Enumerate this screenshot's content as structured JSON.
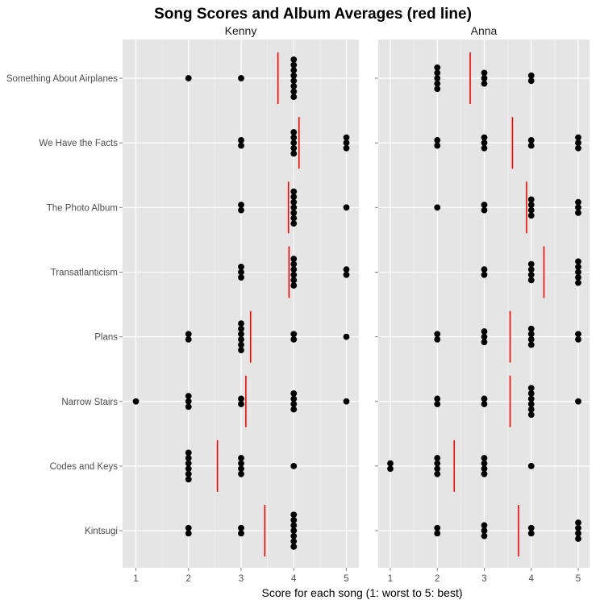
{
  "chart_data": {
    "type": "scatter",
    "title": "Song Scores and Album Averages (red line)",
    "xlabel": "Score for each song (1: worst to 5: best)",
    "ylabel": "",
    "xlim": [
      0.75,
      5.25
    ],
    "x_ticks": [
      1,
      2,
      3,
      4,
      5
    ],
    "grid": true,
    "legend": null,
    "facet_by": "reviewer",
    "categories": [
      "Something About Airplanes",
      "We Have the Facts",
      "The Photo Album",
      "Transatlanticism",
      "Plans",
      "Narrow Stairs",
      "Codes and Keys",
      "Kintsugi"
    ],
    "mean_line_color": "#ff0000",
    "point_color": "#000000",
    "panels": [
      {
        "name": "Kenny",
        "albums": [
          {
            "album": "Something About Airplanes",
            "score_counts": {
              "1": 0,
              "2": 1,
              "3": 1,
              "4": 8,
              "5": 0
            },
            "mean": 3.7
          },
          {
            "album": "We Have the Facts",
            "score_counts": {
              "1": 0,
              "2": 0,
              "3": 2,
              "4": 5,
              "5": 3
            },
            "mean": 4.1
          },
          {
            "album": "The Photo Album",
            "score_counts": {
              "1": 0,
              "2": 0,
              "3": 2,
              "4": 7,
              "5": 1
            },
            "mean": 3.9
          },
          {
            "album": "Transatlanticism",
            "score_counts": {
              "1": 0,
              "2": 0,
              "3": 3,
              "4": 6,
              "5": 2
            },
            "mean": 3.91
          },
          {
            "album": "Plans",
            "score_counts": {
              "1": 0,
              "2": 2,
              "3": 6,
              "4": 2,
              "5": 1
            },
            "mean": 3.18
          },
          {
            "album": "Narrow Stairs",
            "score_counts": {
              "1": 1,
              "2": 3,
              "3": 2,
              "4": 4,
              "5": 1
            },
            "mean": 3.09
          },
          {
            "album": "Codes and Keys",
            "score_counts": {
              "1": 0,
              "2": 6,
              "3": 4,
              "4": 1,
              "5": 0
            },
            "mean": 2.55
          },
          {
            "album": "Kintsugi",
            "score_counts": {
              "1": 0,
              "2": 2,
              "3": 2,
              "4": 7,
              "5": 0
            },
            "mean": 3.45
          }
        ]
      },
      {
        "name": "Anna",
        "albums": [
          {
            "album": "Something About Airplanes",
            "score_counts": {
              "1": 0,
              "2": 5,
              "3": 3,
              "4": 2,
              "5": 0
            },
            "mean": 2.7
          },
          {
            "album": "We Have the Facts",
            "score_counts": {
              "1": 0,
              "2": 2,
              "3": 3,
              "4": 2,
              "5": 3
            },
            "mean": 3.6
          },
          {
            "album": "The Photo Album",
            "score_counts": {
              "1": 0,
              "2": 1,
              "3": 2,
              "4": 4,
              "5": 3
            },
            "mean": 3.9
          },
          {
            "album": "Transatlanticism",
            "score_counts": {
              "1": 0,
              "2": 0,
              "3": 2,
              "4": 4,
              "5": 5
            },
            "mean": 4.27
          },
          {
            "album": "Plans",
            "score_counts": {
              "1": 0,
              "2": 2,
              "3": 3,
              "4": 4,
              "5": 2
            },
            "mean": 3.55
          },
          {
            "album": "Narrow Stairs",
            "score_counts": {
              "1": 0,
              "2": 2,
              "3": 2,
              "4": 6,
              "5": 1
            },
            "mean": 3.55
          },
          {
            "album": "Codes and Keys",
            "score_counts": {
              "1": 2,
              "2": 4,
              "3": 4,
              "4": 1,
              "5": 0
            },
            "mean": 2.36
          },
          {
            "album": "Kintsugi",
            "score_counts": {
              "1": 0,
              "2": 2,
              "3": 3,
              "4": 2,
              "5": 4
            },
            "mean": 3.73
          }
        ]
      }
    ]
  }
}
